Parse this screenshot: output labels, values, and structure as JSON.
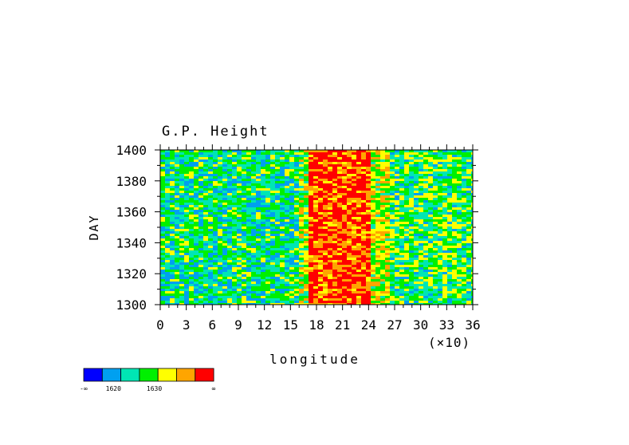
{
  "chart_data": {
    "type": "heatmap",
    "title": "G.P. Height",
    "xlabel": "longitude",
    "ylabel": "DAY",
    "x_multiplier_label": "(×10)",
    "x_ticks": [
      "0",
      "3",
      "6",
      "9",
      "12",
      "15",
      "18",
      "21",
      "24",
      "27",
      "30",
      "33",
      "36"
    ],
    "y_ticks": [
      "1300",
      "1320",
      "1340",
      "1360",
      "1380",
      "1400"
    ],
    "xlim": [
      0,
      36
    ],
    "ylim": [
      1300,
      1400
    ],
    "colorbar": {
      "colors": [
        "#0000ff",
        "#00a0f0",
        "#00e6b4",
        "#00f000",
        "#ffff00",
        "#ffa500",
        "#ff0000"
      ],
      "labels": [
        "-∞",
        "1620",
        "1630",
        "∞"
      ]
    },
    "field_bands": [
      {
        "from": 0,
        "to": 16,
        "base_level": 2.3
      },
      {
        "from": 16,
        "to": 17,
        "base_level": 3.6
      },
      {
        "from": 17,
        "to": 24,
        "base_level": 5.7
      },
      {
        "from": 24,
        "to": 26,
        "base_level": 3.8
      },
      {
        "from": 26,
        "to": 36,
        "base_level": 2.8
      }
    ]
  }
}
